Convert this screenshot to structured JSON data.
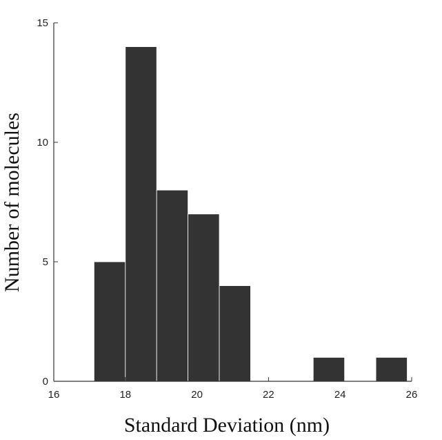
{
  "chart_data": {
    "type": "bar",
    "title": "",
    "xlabel": "Standard Deviation (nm)",
    "ylabel": "Number of molecules",
    "xlim": [
      16,
      26
    ],
    "ylim": [
      0,
      15
    ],
    "xticks": [
      16,
      18,
      20,
      22,
      24,
      26
    ],
    "yticks": [
      0,
      5,
      10,
      15
    ],
    "bin_width": 0.875,
    "bins": [
      {
        "x0": 17.125,
        "x1": 18.0,
        "count": 5
      },
      {
        "x0": 18.0,
        "x1": 18.875,
        "count": 14
      },
      {
        "x0": 18.875,
        "x1": 19.75,
        "count": 8
      },
      {
        "x0": 19.75,
        "x1": 20.625,
        "count": 7
      },
      {
        "x0": 20.625,
        "x1": 21.5,
        "count": 4
      },
      {
        "x0": 21.5,
        "x1": 22.375,
        "count": 0
      },
      {
        "x0": 22.375,
        "x1": 23.25,
        "count": 0
      },
      {
        "x0": 23.25,
        "x1": 24.125,
        "count": 1
      },
      {
        "x0": 24.125,
        "x1": 25.0,
        "count": 0
      },
      {
        "x0": 25.0,
        "x1": 25.875,
        "count": 1
      }
    ],
    "grid": false,
    "legend": "none",
    "bar_color": "#333333"
  }
}
